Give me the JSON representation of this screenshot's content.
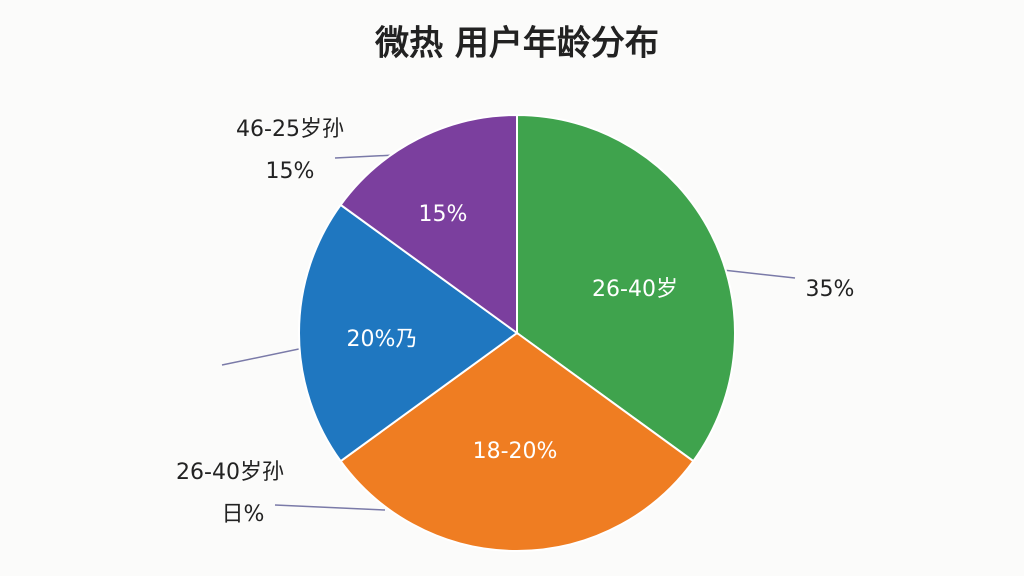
{
  "chart_data": {
    "type": "pie",
    "title": "微热 用户年龄分布",
    "values": [
      35,
      30,
      20,
      15
    ],
    "colors": [
      "#3fa34d",
      "#ef7d22",
      "#1f77c0",
      "#7b3f9e"
    ],
    "inner_labels": [
      "26-40岁",
      "18-20%",
      "20%乃",
      "15%"
    ],
    "outer_labels": [
      [
        "35%"
      ],
      [
        "26-40岁孙",
        "日%"
      ],
      [],
      [
        "46-25岁孙",
        "15%"
      ]
    ]
  }
}
